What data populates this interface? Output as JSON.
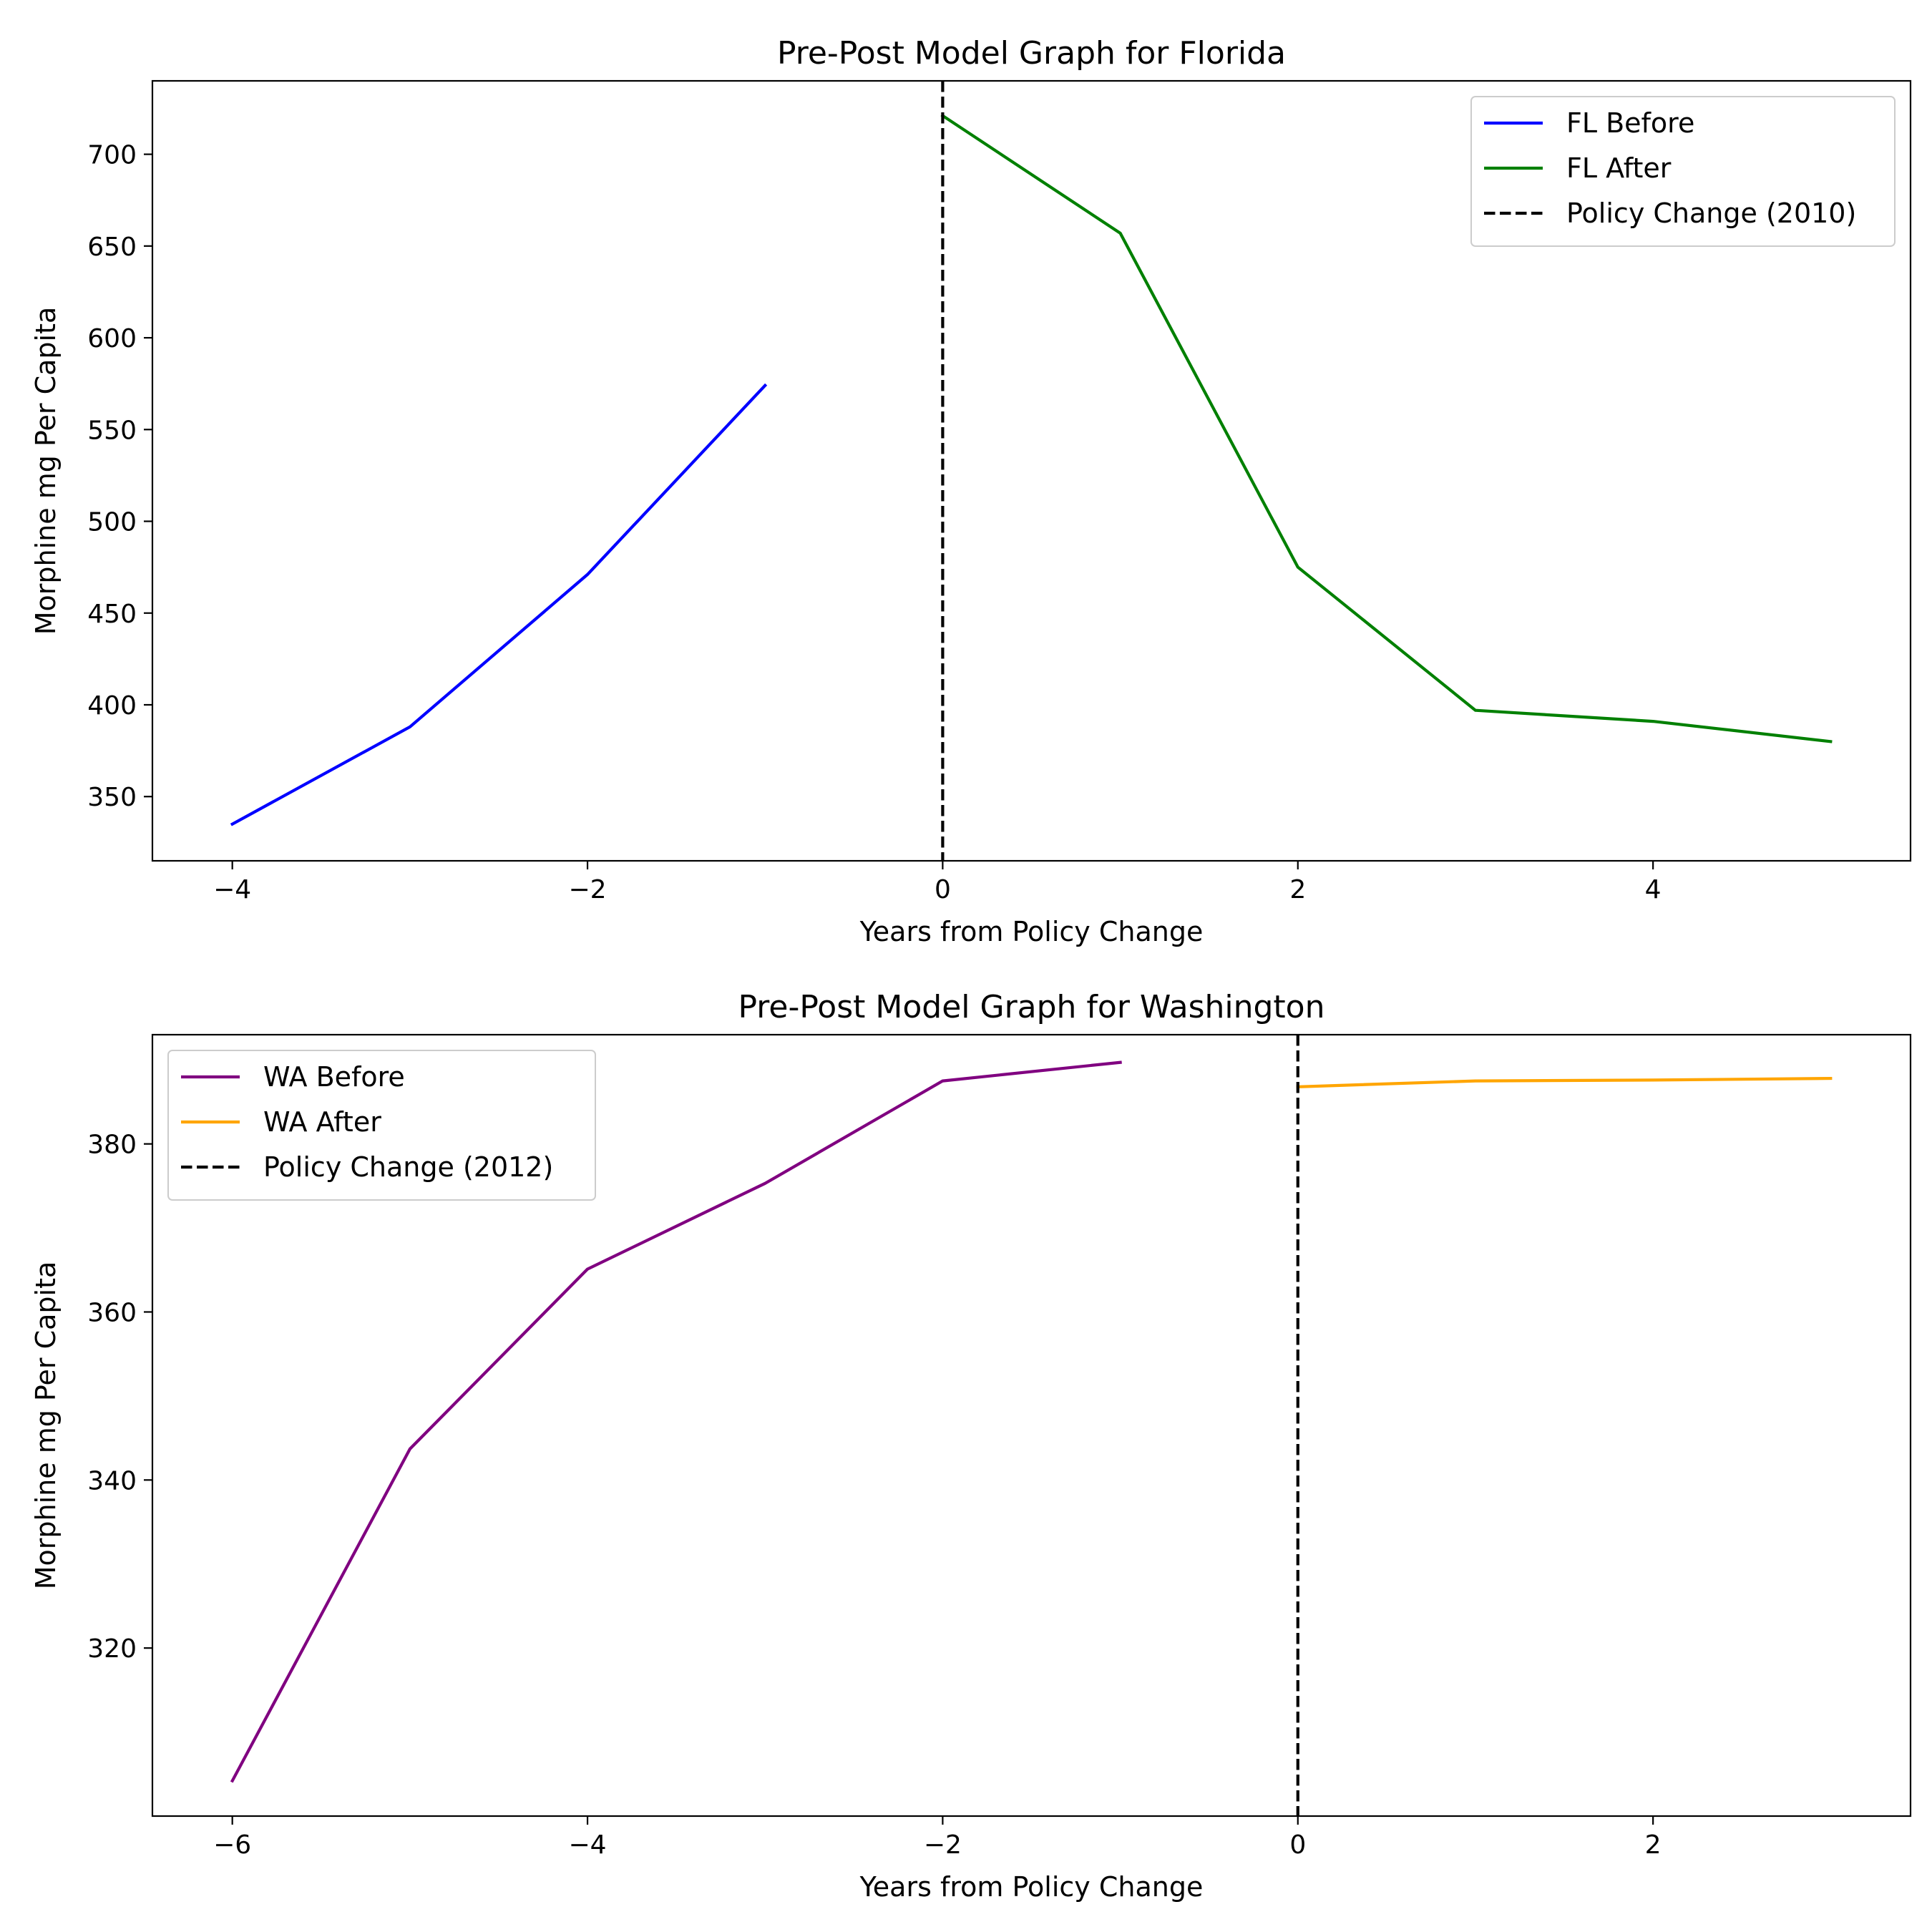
{
  "chart_data": [
    {
      "type": "line",
      "title": "Pre-Post Model Graph for Florida",
      "xlabel": "Years from Policy Change",
      "ylabel": "Morphine mg Per Capita",
      "xlim": [
        -4.45,
        5.45
      ],
      "ylim": [
        315,
        740
      ],
      "xticks": [
        -4,
        -2,
        0,
        2,
        4
      ],
      "yticks": [
        350,
        400,
        450,
        500,
        550,
        600,
        650,
        700
      ],
      "grid": false,
      "legend_position": "top-right",
      "series": [
        {
          "name": "FL Before",
          "color": "#0000ff",
          "style": "solid",
          "x": [
            -4,
            -3,
            -2,
            -1
          ],
          "y": [
            335,
            388,
            471,
            574
          ]
        },
        {
          "name": "FL After",
          "color": "#008000",
          "style": "solid",
          "x": [
            0,
            1,
            2,
            3,
            4,
            5
          ],
          "y": [
            721,
            657,
            475,
            397,
            391,
            380
          ]
        }
      ],
      "vlines": [
        {
          "name": "Policy Change (2010)",
          "x": 0,
          "color": "#000000",
          "style": "dashed"
        }
      ]
    },
    {
      "type": "line",
      "title": "Pre-Post Model Graph for Washington",
      "xlabel": "Years from Policy Change",
      "ylabel": "Morphine mg Per Capita",
      "xlim": [
        -6.45,
        3.45
      ],
      "ylim": [
        300,
        393
      ],
      "xticks": [
        -6,
        -4,
        -2,
        0,
        2
      ],
      "yticks": [
        320,
        340,
        360,
        380
      ],
      "grid": false,
      "legend_position": "top-left",
      "series": [
        {
          "name": "WA Before",
          "color": "#800080",
          "style": "solid",
          "x": [
            -6,
            -5,
            -4,
            -3,
            -2,
            -1
          ],
          "y": [
            304.2,
            343.7,
            365.1,
            375.3,
            387.5,
            389.7
          ]
        },
        {
          "name": "WA After",
          "color": "#ffa500",
          "style": "solid",
          "x": [
            0,
            1,
            2,
            3
          ],
          "y": [
            386.8,
            387.5,
            387.6,
            387.8
          ]
        }
      ],
      "vlines": [
        {
          "name": "Policy Change (2012)",
          "x": 0,
          "color": "#000000",
          "style": "dashed"
        }
      ]
    }
  ]
}
